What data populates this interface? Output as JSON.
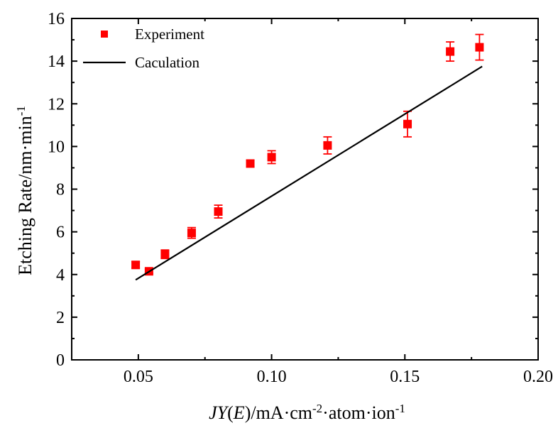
{
  "chart_data": {
    "type": "scatter",
    "xlabel": {
      "parts": [
        {
          "text": "JY",
          "style": "italic"
        },
        {
          "text": "(",
          "style": "normal"
        },
        {
          "text": "E",
          "style": "italic"
        },
        {
          "text": ")/mA·cm",
          "style": "normal"
        },
        {
          "text": "-2",
          "style": "sup"
        },
        {
          "text": "·atom·ion",
          "style": "normal"
        },
        {
          "text": "-1",
          "style": "sup"
        }
      ]
    },
    "ylabel": {
      "parts": [
        {
          "text": "Etching Rate/nm·min",
          "style": "normal"
        },
        {
          "text": "-1",
          "style": "sup"
        }
      ]
    },
    "xlim": [
      0.025,
      0.2
    ],
    "ylim": [
      0,
      16
    ],
    "x_ticks": [
      0.05,
      0.1,
      0.15,
      0.2
    ],
    "x_tick_labels": [
      "0.05",
      "0.10",
      "0.15",
      "0.20"
    ],
    "y_ticks": [
      0,
      2,
      4,
      6,
      8,
      10,
      12,
      14,
      16
    ],
    "y_tick_labels": [
      "0",
      "2",
      "4",
      "6",
      "8",
      "10",
      "12",
      "14",
      "16"
    ],
    "grid": false,
    "legend_position": "top-left",
    "series": [
      {
        "name": "Experiment",
        "kind": "scatter",
        "marker": "square",
        "color": "#ff0000",
        "points": [
          {
            "x": 0.049,
            "y": 4.45,
            "err": 0.15
          },
          {
            "x": 0.054,
            "y": 4.15,
            "err": 0.1
          },
          {
            "x": 0.06,
            "y": 4.95,
            "err": 0.2
          },
          {
            "x": 0.07,
            "y": 5.95,
            "err": 0.25
          },
          {
            "x": 0.08,
            "y": 6.95,
            "err": 0.3
          },
          {
            "x": 0.092,
            "y": 9.2,
            "err": 0.15
          },
          {
            "x": 0.1,
            "y": 9.5,
            "err": 0.3
          },
          {
            "x": 0.121,
            "y": 10.05,
            "err": 0.4
          },
          {
            "x": 0.151,
            "y": 11.05,
            "err": 0.6
          },
          {
            "x": 0.167,
            "y": 14.45,
            "err": 0.45
          },
          {
            "x": 0.178,
            "y": 14.65,
            "err": 0.6
          }
        ]
      },
      {
        "name": "Caculation",
        "kind": "line",
        "color": "#000000",
        "points": [
          {
            "x": 0.049,
            "y": 3.75
          },
          {
            "x": 0.166,
            "y": 12.75
          },
          {
            "x": 0.179,
            "y": 13.75
          }
        ]
      }
    ]
  }
}
